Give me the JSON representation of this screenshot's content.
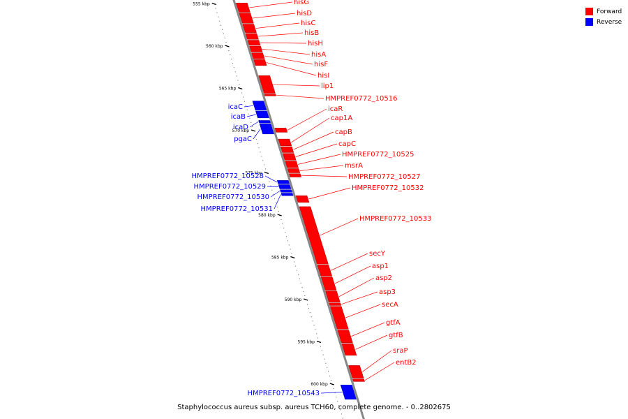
{
  "colors": {
    "forward": "#ff0000",
    "reverse": "#0000ff",
    "backbone": "#888888"
  },
  "legend": [
    {
      "label": "Forward",
      "color": "#ff0000"
    },
    {
      "label": "Reverse",
      "color": "#0000ff"
    }
  ],
  "caption": "Staphylococcus aureus subsp. aureus TCH60, complete genome. - 0..2802675",
  "ticks": [
    {
      "label": "555 kbp",
      "kbp": 555
    },
    {
      "label": "560 kbp",
      "kbp": 560
    },
    {
      "label": "565 kbp",
      "kbp": 565
    },
    {
      "label": "570 kbp",
      "kbp": 570
    },
    {
      "label": "575 kbp",
      "kbp": 575
    },
    {
      "label": "580 kbp",
      "kbp": 580
    },
    {
      "label": "585 kbp",
      "kbp": 585
    },
    {
      "label": "590 kbp",
      "kbp": 590
    },
    {
      "label": "595 kbp",
      "kbp": 595
    },
    {
      "label": "600 kbp",
      "kbp": 600
    }
  ],
  "genes": [
    {
      "name": "hisG",
      "strand": "forward",
      "start": 554.9,
      "end": 556.0
    },
    {
      "name": "hisD",
      "strand": "forward",
      "start": 556.1,
      "end": 557.3
    },
    {
      "name": "hisC",
      "strand": "forward",
      "start": 557.4,
      "end": 558.4
    },
    {
      "name": "hisB",
      "strand": "forward",
      "start": 558.5,
      "end": 559.2
    },
    {
      "name": "hisH",
      "strand": "forward",
      "start": 559.3,
      "end": 559.9
    },
    {
      "name": "hisA",
      "strand": "forward",
      "start": 560.0,
      "end": 560.7
    },
    {
      "name": "hisF",
      "strand": "forward",
      "start": 560.8,
      "end": 561.5
    },
    {
      "name": "hisI",
      "strand": "forward",
      "start": 561.6,
      "end": 562.3
    },
    {
      "name": "lip1",
      "strand": "forward",
      "start": 563.5,
      "end": 565.6
    },
    {
      "name": "HMPREF0772_10516",
      "strand": "forward",
      "start": 565.7,
      "end": 565.9
    },
    {
      "name": "icaC",
      "strand": "reverse",
      "start": 566.5,
      "end": 567.6
    },
    {
      "name": "icaB",
      "strand": "reverse",
      "start": 567.7,
      "end": 568.5
    },
    {
      "name": "icaD",
      "strand": "reverse",
      "start": 568.8,
      "end": 569.1
    },
    {
      "name": "pgaC",
      "strand": "reverse",
      "start": 569.2,
      "end": 570.4
    },
    {
      "name": "icaR",
      "strand": "forward",
      "start": 569.7,
      "end": 570.2
    },
    {
      "name": "cap1A",
      "strand": "forward",
      "start": 571.0,
      "end": 571.8
    },
    {
      "name": "capB",
      "strand": "forward",
      "start": 571.9,
      "end": 572.6
    },
    {
      "name": "capC",
      "strand": "forward",
      "start": 572.7,
      "end": 573.5
    },
    {
      "name": "HMPREF0772_10525",
      "strand": "forward",
      "start": 573.6,
      "end": 574.4
    },
    {
      "name": "msrA",
      "strand": "forward",
      "start": 574.5,
      "end": 575.0
    },
    {
      "name": "HMPREF0772_10527",
      "strand": "forward",
      "start": 575.1,
      "end": 575.5
    },
    {
      "name": "HMPREF0772_10528",
      "strand": "reverse",
      "start": 575.9,
      "end": 576.3
    },
    {
      "name": "HMPREF0772_10529",
      "strand": "reverse",
      "start": 576.4,
      "end": 576.9
    },
    {
      "name": "HMPREF0772_10530",
      "strand": "reverse",
      "start": 577.0,
      "end": 577.3
    },
    {
      "name": "HMPREF0772_10531",
      "strand": "reverse",
      "start": 577.4,
      "end": 577.7
    },
    {
      "name": "HMPREF0772_10532",
      "strand": "forward",
      "start": 577.7,
      "end": 578.5
    },
    {
      "name": "HMPREF0772_10533",
      "strand": "forward",
      "start": 579.0,
      "end": 585.8
    },
    {
      "name": "secY",
      "strand": "forward",
      "start": 585.9,
      "end": 587.2
    },
    {
      "name": "asp1",
      "strand": "forward",
      "start": 587.3,
      "end": 588.9
    },
    {
      "name": "asp2",
      "strand": "forward",
      "start": 589.0,
      "end": 590.3
    },
    {
      "name": "asp3",
      "strand": "forward",
      "start": 590.4,
      "end": 590.7
    },
    {
      "name": "secA",
      "strand": "forward",
      "start": 590.8,
      "end": 593.5
    },
    {
      "name": "gtfA",
      "strand": "forward",
      "start": 593.6,
      "end": 595.1
    },
    {
      "name": "gtfB",
      "strand": "forward",
      "start": 595.2,
      "end": 596.6
    },
    {
      "name": "sraP",
      "strand": "forward",
      "start": 597.8,
      "end": 599.3
    },
    {
      "name": "entB2",
      "strand": "forward",
      "start": 599.4,
      "end": 599.7
    },
    {
      "name": "HMPREF0772_10543",
      "strand": "reverse",
      "start": 600.1,
      "end": 601.8
    }
  ]
}
